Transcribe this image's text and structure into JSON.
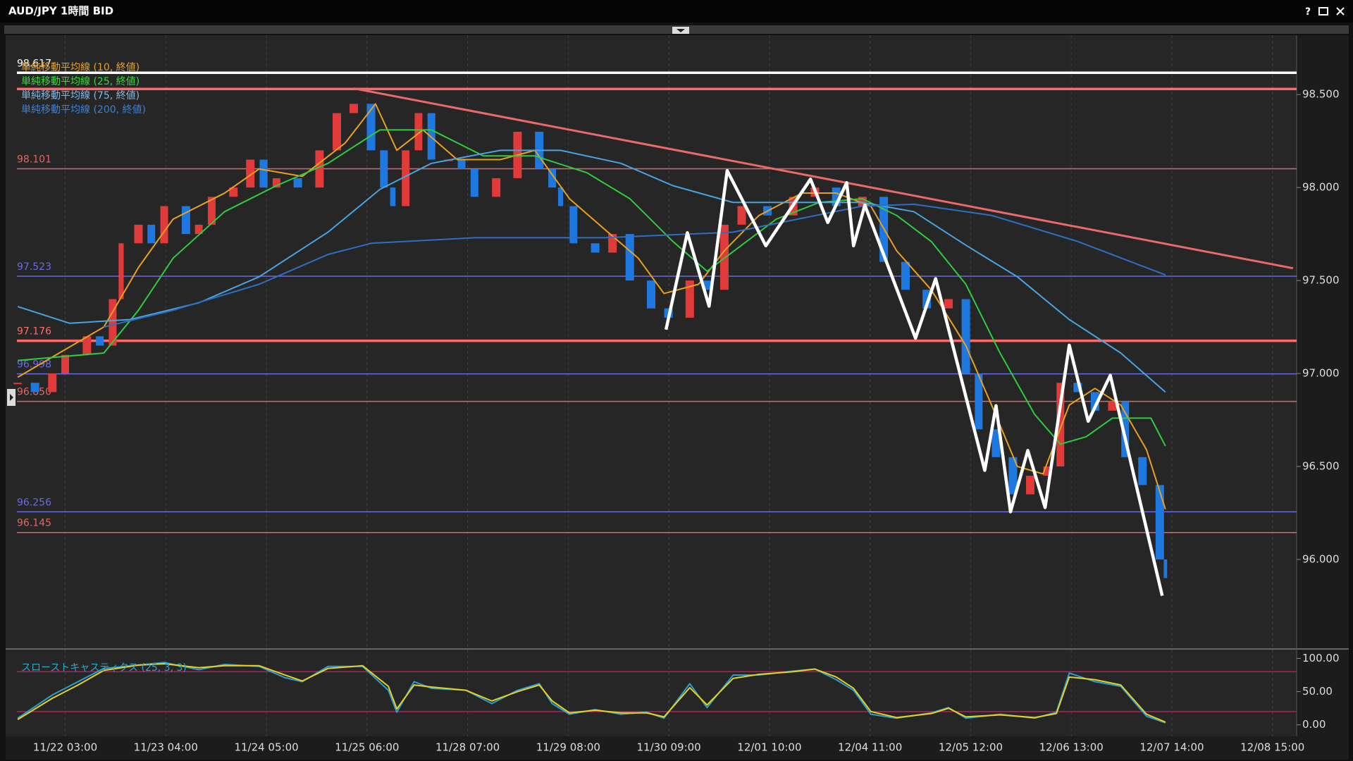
{
  "window": {
    "title": "AUD/JPY 1時間 BID",
    "help": "?"
  },
  "chart_data": [
    {
      "type": "candlestick",
      "xlim": [
        -12,
        306
      ],
      "xticks": [
        {
          "value": 0,
          "label": "11/22 03:00"
        },
        {
          "value": 25,
          "label": "11/23 04:00"
        },
        {
          "value": 50,
          "label": "11/24 05:00"
        },
        {
          "value": 75,
          "label": "11/25 06:00"
        },
        {
          "value": 100,
          "label": "11/28 07:00"
        },
        {
          "value": 125,
          "label": "11/29 08:00"
        },
        {
          "value": 150,
          "label": "11/30 09:00"
        },
        {
          "value": 175,
          "label": "12/01 10:00"
        },
        {
          "value": 200,
          "label": "12/04 11:00"
        },
        {
          "value": 225,
          "label": "12/05 12:00"
        },
        {
          "value": 250,
          "label": "12/06 13:00"
        },
        {
          "value": 275,
          "label": "12/07 14:00"
        },
        {
          "value": 300,
          "label": "12/08 15:00"
        }
      ],
      "ylim": [
        95.53,
        98.8
      ],
      "yticks": [
        {
          "value": 96,
          "label": "96.000"
        },
        {
          "value": 96.5,
          "label": "96.500"
        },
        {
          "value": 97,
          "label": "97.000"
        },
        {
          "value": 97.5,
          "label": "97.500"
        },
        {
          "value": 98,
          "label": "98.000"
        },
        {
          "value": 98.5,
          "label": "98.500"
        }
      ],
      "grid": "x",
      "candles": {
        "up_color": "#e03a3a",
        "down_color": "#1f78e0",
        "x": [
          -11.8,
          -7.5,
          -3.2,
          0,
          5.4,
          8.6,
          11.8,
          13.9,
          18.2,
          21.4,
          24.6,
          30.0,
          33.2,
          36.4,
          41.8,
          46.0,
          49.3,
          52.5,
          57.8,
          63.2,
          67.5,
          71.7,
          76.0,
          79.2,
          81.4,
          84.6,
          87.8,
          91.0,
          95.3,
          98.5,
          101.7,
          107.1,
          112.4,
          117.8,
          121.0,
          123.1,
          126.3,
          131.7,
          136.0,
          140.3,
          145.6,
          149.9,
          155.2,
          159.5,
          163.8,
          168.1,
          174.5,
          180.9,
          186.3,
          191.6,
          198.1,
          203.4,
          208.8,
          214.1,
          219.5,
          223.8,
          227.0,
          231.3,
          235.5,
          239.8,
          244.1,
          247.3,
          251.6,
          255.9,
          260.2,
          263.4,
          267.7,
          272.0,
          273.4
        ],
        "close": [
          96.95,
          96.9,
          97.0,
          97.1,
          97.2,
          97.15,
          97.4,
          97.7,
          97.8,
          97.7,
          97.9,
          97.75,
          97.8,
          97.95,
          98.0,
          98.15,
          98.0,
          98.05,
          98.0,
          98.2,
          98.4,
          98.45,
          98.2,
          98.0,
          97.9,
          98.2,
          98.4,
          98.15,
          98.15,
          98.1,
          97.95,
          98.05,
          98.3,
          98.1,
          98.0,
          97.9,
          97.7,
          97.65,
          97.75,
          97.5,
          97.35,
          97.3,
          97.5,
          97.45,
          97.8,
          97.9,
          97.85,
          97.95,
          98.0,
          97.9,
          97.95,
          97.6,
          97.45,
          97.35,
          97.4,
          97.0,
          96.7,
          96.55,
          96.35,
          96.45,
          96.5,
          96.95,
          96.9,
          96.8,
          96.85,
          96.55,
          96.4,
          96.0,
          95.9
        ]
      },
      "series": [
        {
          "name": "単純移動平均線 (10, 終値)",
          "color": "#e8a020",
          "label_color": "#e0a030",
          "x": [
            -11.8,
            9.6,
            18.2,
            26.8,
            39.6,
            48.2,
            58.9,
            69.6,
            77.1,
            82.4,
            88.9,
            97.4,
            108.1,
            116.7,
            125.3,
            133.8,
            142.4,
            148.8,
            157.4,
            163.8,
            172.4,
            183.1,
            191.6,
            200.2,
            206.6,
            215.2,
            223.8,
            230.2,
            236.6,
            243.0,
            249.5,
            255.9,
            262.3,
            268.7,
            273.4
          ],
          "values": [
            96.98,
            97.25,
            97.57,
            97.83,
            97.97,
            98.1,
            98.06,
            98.24,
            98.45,
            98.2,
            98.31,
            98.15,
            98.15,
            98.2,
            97.94,
            97.78,
            97.62,
            97.43,
            97.48,
            97.66,
            97.85,
            97.97,
            97.97,
            97.9,
            97.66,
            97.45,
            97.15,
            96.83,
            96.5,
            96.46,
            96.83,
            96.92,
            96.83,
            96.59,
            96.27
          ]
        },
        {
          "name": "単純移動平均線 (25, 終値)",
          "color": "#2ecc40",
          "label_color": "#33dd33",
          "x": [
            -11.8,
            9.6,
            18.2,
            26.8,
            39.6,
            52.5,
            65.3,
            78.2,
            91.0,
            103.9,
            116.7,
            129.6,
            140.3,
            151.0,
            159.5,
            168.1,
            176.7,
            187.4,
            198.1,
            206.6,
            215.2,
            223.8,
            232.3,
            240.9,
            247.3,
            253.7,
            260.2,
            269.8,
            273.4
          ],
          "values": [
            97.07,
            97.11,
            97.34,
            97.62,
            97.87,
            98.01,
            98.13,
            98.31,
            98.31,
            98.17,
            98.17,
            98.08,
            97.94,
            97.71,
            97.55,
            97.69,
            97.83,
            97.92,
            97.94,
            97.85,
            97.71,
            97.48,
            97.11,
            96.78,
            96.62,
            96.66,
            96.76,
            96.76,
            96.61
          ]
        },
        {
          "name": "単純移動平均線 (75, 終値)",
          "color": "#4aa3df",
          "label_color": "#7fb8e6",
          "x": [
            -11.8,
            1.1,
            16.1,
            33.2,
            48.2,
            65.3,
            78.2,
            91.0,
            108.1,
            123.1,
            138.1,
            151.0,
            165.9,
            183.1,
            198.1,
            210.9,
            223.8,
            236.6,
            249.5,
            262.3,
            273.4
          ],
          "values": [
            97.36,
            97.27,
            97.29,
            97.38,
            97.52,
            97.76,
            97.99,
            98.13,
            98.2,
            98.2,
            98.13,
            98.01,
            97.92,
            97.92,
            97.92,
            97.87,
            97.69,
            97.52,
            97.29,
            97.11,
            96.9
          ]
        },
        {
          "name": "単純移動平均線 (200, 終値)",
          "color": "#2f6fc0",
          "label_color": "#3f80d0",
          "x": [
            9.6,
            26.8,
            48.2,
            65.3,
            76.0,
            101.7,
            133.8,
            165.9,
            198.1,
            210.9,
            230.2,
            251.6,
            273.4
          ],
          "values": [
            97.25,
            97.34,
            97.48,
            97.64,
            97.7,
            97.73,
            97.73,
            97.76,
            97.9,
            97.91,
            97.85,
            97.71,
            97.53
          ]
        }
      ],
      "levels": [
        {
          "value": 98.617,
          "label": "98.617",
          "color": "#ffffff",
          "style": "thick"
        },
        {
          "value": 98.53,
          "color": "#ff6b6b",
          "style": "thick"
        },
        {
          "value": 98.101,
          "label": "98.101",
          "color": "#e06666",
          "style": "thin"
        },
        {
          "value": 97.523,
          "label": "97.523",
          "color": "#6a6ae0",
          "style": "thin"
        },
        {
          "value": 97.176,
          "label": "97.176",
          "color": "#ff6b6b",
          "style": "thick"
        },
        {
          "value": 96.998,
          "label": "96.998",
          "color": "#6a6ae0",
          "style": "thin"
        },
        {
          "value": 96.85,
          "label": "96.850",
          "color": "#e06666",
          "style": "thin"
        },
        {
          "value": 96.256,
          "label": "96.256",
          "color": "#6a6ae0",
          "style": "thin"
        },
        {
          "value": 96.145,
          "label": "96.145",
          "color": "#e06666",
          "style": "thin"
        }
      ],
      "trendline": {
        "color": "#e86a6a",
        "x": [
          71.7,
          305.1
        ],
        "values": [
          98.533,
          97.566
        ]
      },
      "zigzag": {
        "color": "#ffffff",
        "x": [
          149.3,
          154.6,
          160.0,
          164.5,
          174.1,
          185.2,
          189.5,
          194.2,
          195.9,
          198.7,
          211.3,
          216.3,
          228.5,
          231.3,
          234.9,
          239.2,
          243.5,
          249.5,
          254.2,
          259.7,
          272.6
        ],
        "values": [
          97.236,
          97.757,
          97.362,
          98.091,
          97.687,
          98.045,
          97.812,
          98.026,
          97.687,
          97.905,
          97.19,
          97.51,
          96.479,
          96.827,
          96.256,
          96.586,
          96.279,
          97.152,
          96.743,
          96.99,
          95.805
        ]
      }
    },
    {
      "type": "line",
      "title": "スローストキャスティクス (25, 3, 3)",
      "title_color": "#2aa8c8",
      "ylim": [
        -12,
        110
      ],
      "yticks": [
        {
          "value": 0,
          "label": "0.00"
        },
        {
          "value": 50,
          "label": "50.00"
        },
        {
          "value": 100,
          "label": "100.00"
        }
      ],
      "levels": [
        {
          "value": 80,
          "color": "#c2185b"
        },
        {
          "value": 20,
          "color": "#c2185b"
        }
      ],
      "series": [
        {
          "color": "#2a9fd6",
          "x": [
            -11.8,
            -3.2,
            3.2,
            9.6,
            18.2,
            24.6,
            33.2,
            39.6,
            48.2,
            54.6,
            58.9,
            65.3,
            73.9,
            80.3,
            82.4,
            86.7,
            91.0,
            99.6,
            106.0,
            112.4,
            117.8,
            121.0,
            125.3,
            131.7,
            138.1,
            144.5,
            148.8,
            155.2,
            159.5,
            166.0,
            172.4,
            180.9,
            186.3,
            191.6,
            195.9,
            200.2,
            206.6,
            215.2,
            219.5,
            223.8,
            232.3,
            240.9,
            246.3,
            249.5,
            255.9,
            262.3,
            268.7,
            273.4
          ],
          "values": [
            10,
            45,
            65,
            85,
            90,
            94,
            83,
            91,
            88,
            71,
            65,
            88,
            88,
            52,
            19,
            65,
            55,
            52,
            32,
            52,
            62,
            32,
            16,
            23,
            16,
            19,
            10,
            62,
            26,
            75,
            75,
            81,
            84,
            68,
            52,
            16,
            10,
            18,
            26,
            10,
            16,
            10,
            19,
            78,
            65,
            58,
            13,
            3
          ]
        },
        {
          "color": "#e6d020",
          "x": [
            -11.8,
            -3.2,
            3.2,
            9.6,
            18.2,
            24.6,
            33.2,
            39.6,
            48.2,
            54.6,
            58.9,
            65.3,
            73.9,
            80.3,
            82.4,
            86.7,
            91.0,
            99.6,
            106.0,
            112.4,
            117.8,
            121.0,
            125.3,
            131.7,
            138.1,
            144.5,
            148.8,
            155.2,
            159.5,
            166.0,
            172.4,
            180.9,
            186.3,
            191.6,
            195.9,
            200.2,
            206.6,
            215.2,
            219.5,
            223.8,
            232.3,
            240.9,
            246.3,
            249.5,
            255.9,
            262.3,
            268.7,
            273.4
          ],
          "values": [
            8,
            40,
            60,
            82,
            90,
            92,
            86,
            89,
            89,
            75,
            66,
            85,
            89,
            58,
            24,
            60,
            57,
            52,
            36,
            50,
            60,
            36,
            18,
            22,
            18,
            18,
            12,
            56,
            30,
            70,
            76,
            80,
            84,
            72,
            55,
            20,
            11,
            17,
            25,
            12,
            15,
            11,
            17,
            72,
            68,
            60,
            16,
            4
          ]
        }
      ]
    }
  ]
}
